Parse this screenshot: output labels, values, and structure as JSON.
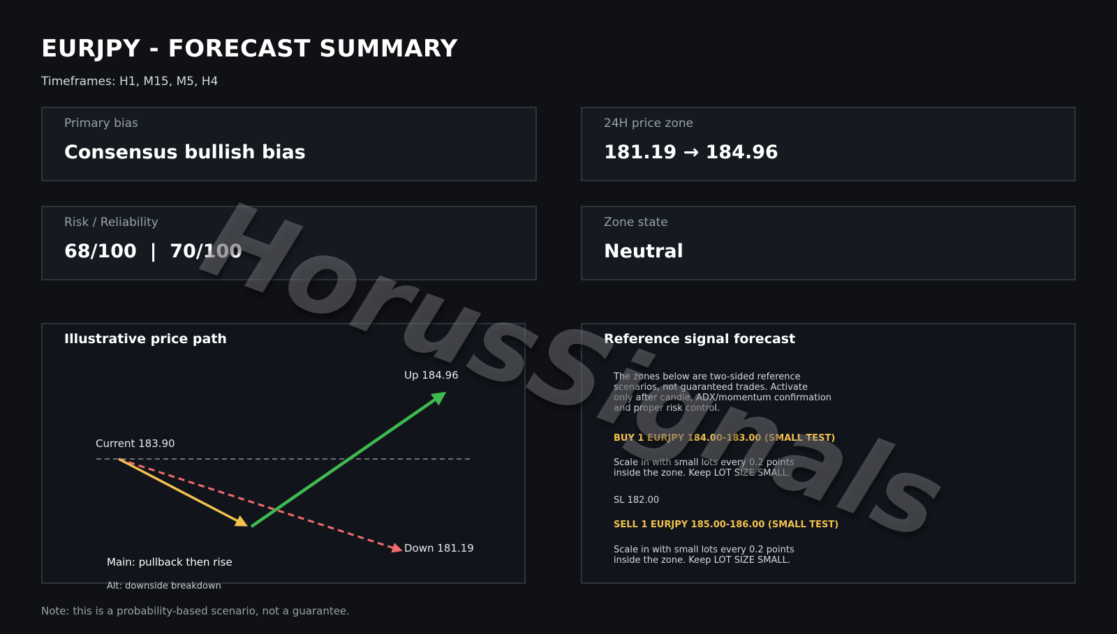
{
  "header": {
    "title": "EURJPY - FORECAST SUMMARY",
    "timeframes": "Timeframes: H1, M15, M5, H4"
  },
  "cards": {
    "primary_bias": {
      "label": "Primary bias",
      "value": "Consensus bullish bias"
    },
    "price_zone": {
      "label": "24H price zone",
      "value": "181.19 → 184.96"
    },
    "risk": {
      "label": "Risk / Reliability",
      "value": "68/100  |  70/100"
    },
    "zone_state": {
      "label": "Zone state",
      "value": "Neutral"
    }
  },
  "price_path": {
    "title": "Illustrative price path",
    "current_label": "Current 183.90",
    "up_label": "Up 184.96",
    "down_label": "Down 181.19",
    "main_label": "Main: pullback then rise",
    "alt_label": "Alt: downside breakdown",
    "colors": {
      "main_leg1": "#f2c14e",
      "main_leg2": "#3fb950",
      "alt": "#f26b6b",
      "current_line": "#8a8f98"
    }
  },
  "chart_data": {
    "type": "line",
    "title": "Illustrative price path",
    "current_level": 183.9,
    "up_target": 184.96,
    "down_target": 181.19,
    "series": [
      {
        "name": "Main: pullback then rise",
        "style": "solid"
      },
      {
        "name": "Alt: downside breakdown",
        "style": "dashed"
      }
    ]
  },
  "signal": {
    "title": "Reference signal forecast",
    "intro": "The zones below are two-sided reference\nscenarios, not guaranteed trades. Activate\nonly after candle, ADX/momentum confirmation\nand proper risk control.",
    "buy_head": "BUY 1 EURJPY 184.00-183.00 (SMALL TEST)",
    "buy_text": "Scale in with small lots every 0.2 points\ninside the zone. Keep LOT SIZE SMALL.",
    "buy_sl": "SL 182.00",
    "sell_head": "SELL 1 EURJPY 185.00-186.00 (SMALL TEST)",
    "sell_text": "Scale in with small lots every 0.2 points\ninside the zone. Keep LOT SIZE SMALL."
  },
  "footer": {
    "note": "Note: this is a probability-based scenario, not a guarantee."
  },
  "watermark": "HorusSignals"
}
